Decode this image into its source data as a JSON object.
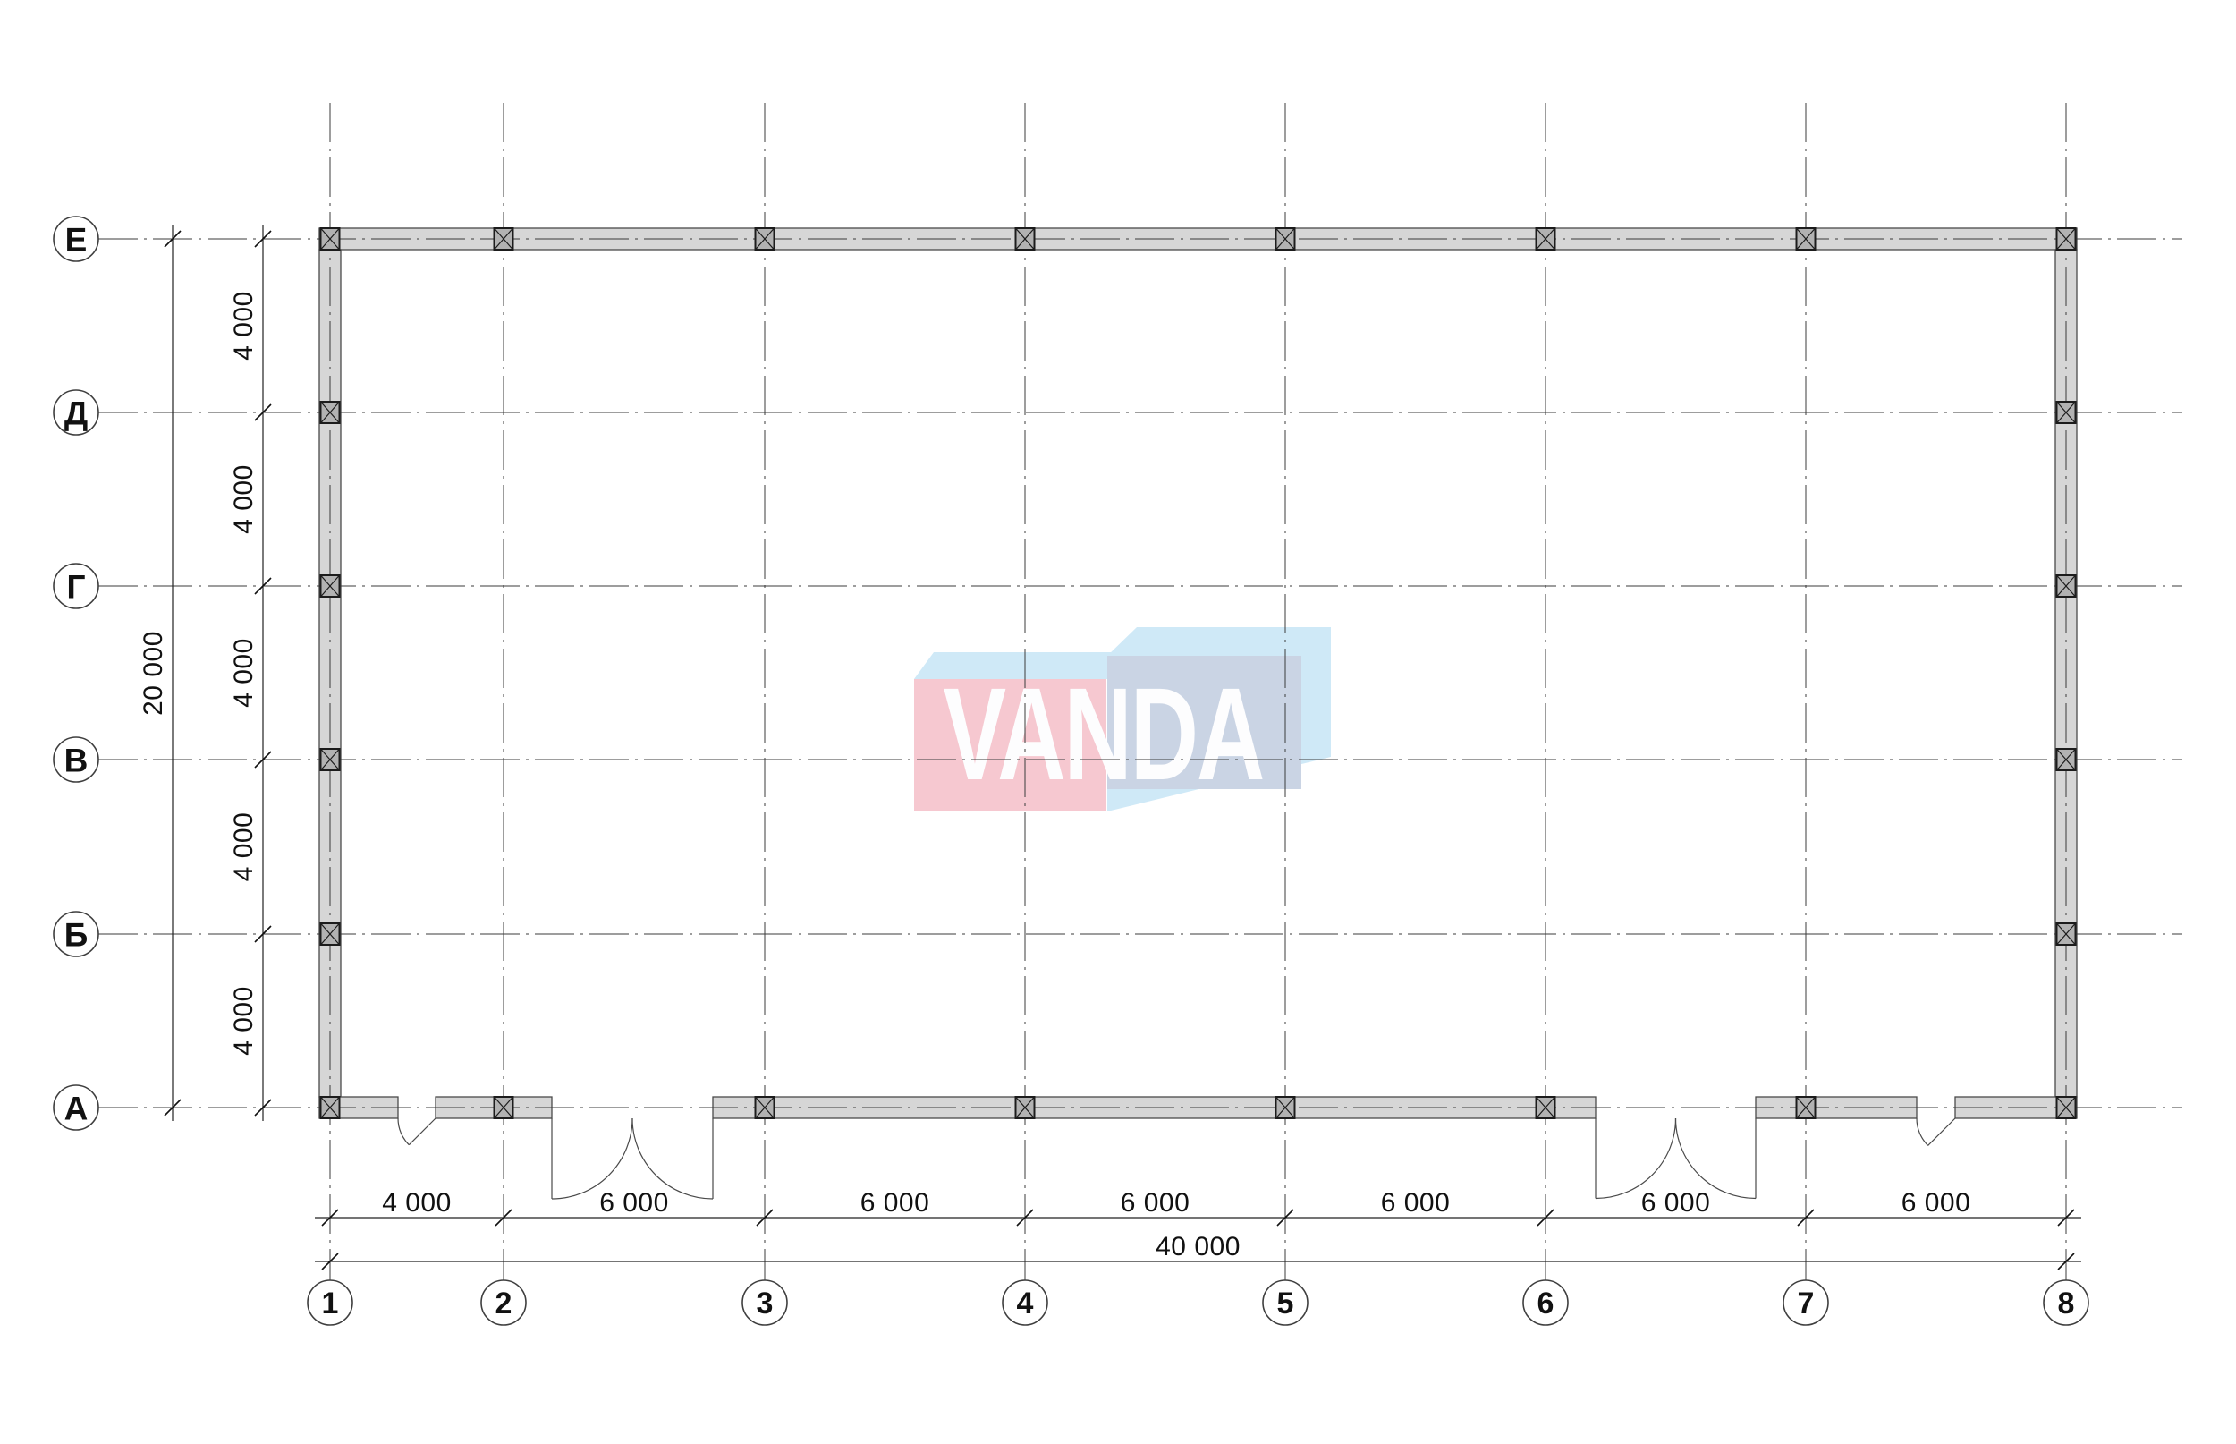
{
  "page": {
    "background": "#ffffff",
    "title": "floor-plan-drawing"
  },
  "plan": {
    "row_bubbles": [
      "Е",
      "Д",
      "Г",
      "В",
      "Б",
      "А"
    ],
    "column_bubbles": [
      "1",
      "2",
      "3",
      "4",
      "5",
      "6",
      "7",
      "8"
    ],
    "dimensions": {
      "left_segments": [
        "4 000",
        "4 000",
        "4 000",
        "4 000",
        "4 000"
      ],
      "left_total": "20 000",
      "bottom_segments": [
        "4 000",
        "6 000",
        "6 000",
        "6 000",
        "6 000",
        "6 000",
        "6 000"
      ],
      "bottom_total": "40 000"
    },
    "colors": {
      "wall_fill": "#d6d6d6",
      "wall_stroke": "#4a4a4a",
      "column_fill": "#b2b2b2",
      "column_stroke": "#1c1c1c",
      "grid_line": "#3b3b3b",
      "dim_line": "#222222",
      "tick": "#111111",
      "text": "#111111",
      "bubble_stroke": "#3f3f3f",
      "bubble_fill": "#ffffff",
      "door_stroke": "#4a4a4a"
    }
  },
  "logo": {
    "text": "VANDA",
    "pink": "#f6c8d0",
    "panel_blue": "#cad4e4",
    "light_blue": "#cfe9f7",
    "text_color": "#fdfdfe"
  }
}
